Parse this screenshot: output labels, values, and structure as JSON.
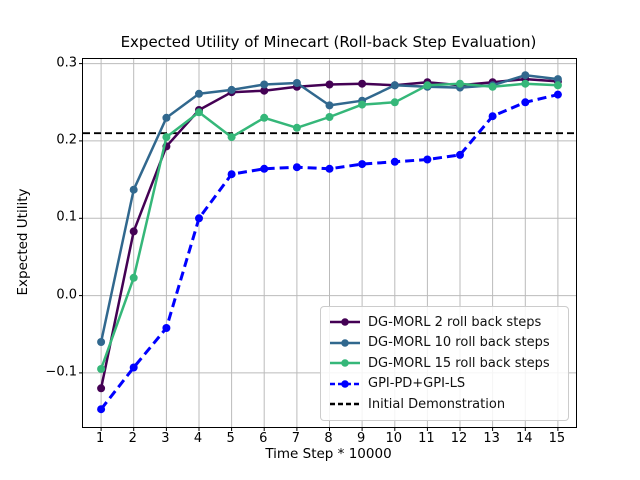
{
  "figure": {
    "title": "Expected Utility of Minecart (Roll-back Step Evaluation)",
    "xlabel": "Time Step * 10000",
    "ylabel": "Expected Utility"
  },
  "chart_data": {
    "type": "line",
    "title": "Expected Utility of Minecart (Roll-back Step Evaluation)",
    "xlabel": "Time Step * 10000",
    "ylabel": "Expected Utility",
    "grid": true,
    "legend_position": "lower right",
    "x": [
      1,
      2,
      3,
      4,
      5,
      6,
      7,
      8,
      9,
      10,
      11,
      12,
      13,
      14,
      15
    ],
    "xtick_labels": [
      "1",
      "2",
      "3",
      "4",
      "5",
      "6",
      "7",
      "8",
      "9",
      "10",
      "11",
      "12",
      "13",
      "14",
      "15"
    ],
    "yticks": [
      0.3,
      0.2,
      0.1,
      0.0,
      -0.1
    ],
    "ytick_labels": [
      "0.3",
      "0.2",
      "0.1",
      "0.0",
      "−0.1"
    ],
    "xlim": [
      0.445,
      15.555
    ],
    "ylim": [
      -0.17,
      0.306
    ],
    "series": [
      {
        "name": "DG-MORL 2 roll back steps",
        "color": "#440154",
        "line_style": "solid",
        "marker": "circle",
        "values": [
          -0.12,
          0.083,
          0.193,
          0.24,
          0.263,
          0.265,
          0.27,
          0.273,
          0.274,
          0.272,
          0.276,
          0.272,
          0.276,
          0.28,
          0.277
        ]
      },
      {
        "name": "DG-MORL 10 roll back steps",
        "color": "#31688e",
        "line_style": "solid",
        "marker": "circle",
        "values": [
          -0.06,
          0.137,
          0.23,
          0.261,
          0.266,
          0.273,
          0.275,
          0.246,
          0.252,
          0.272,
          0.27,
          0.269,
          0.272,
          0.285,
          0.28
        ]
      },
      {
        "name": "DG-MORL 15 roll back steps",
        "color": "#35b779",
        "line_style": "solid",
        "marker": "circle",
        "values": [
          -0.095,
          0.023,
          0.205,
          0.237,
          0.205,
          0.23,
          0.217,
          0.231,
          0.247,
          0.25,
          0.272,
          0.274,
          0.27,
          0.274,
          0.272
        ]
      },
      {
        "name": "GPI-PD+GPI-LS",
        "color": "#0000ff",
        "line_style": "dashed",
        "marker": "circle",
        "values": [
          -0.147,
          -0.093,
          -0.042,
          0.1,
          0.157,
          0.164,
          0.166,
          0.164,
          0.17,
          0.173,
          0.176,
          0.182,
          0.232,
          0.25,
          0.26
        ]
      }
    ],
    "reference_line": {
      "name": "Initial Demonstration",
      "value": 0.21,
      "color": "#000000",
      "line_style": "dashed"
    }
  },
  "colors": {
    "background": "#ffffff",
    "axis": "#000000",
    "grid": "#bbbbbb",
    "legend_border": "#cccccc"
  }
}
